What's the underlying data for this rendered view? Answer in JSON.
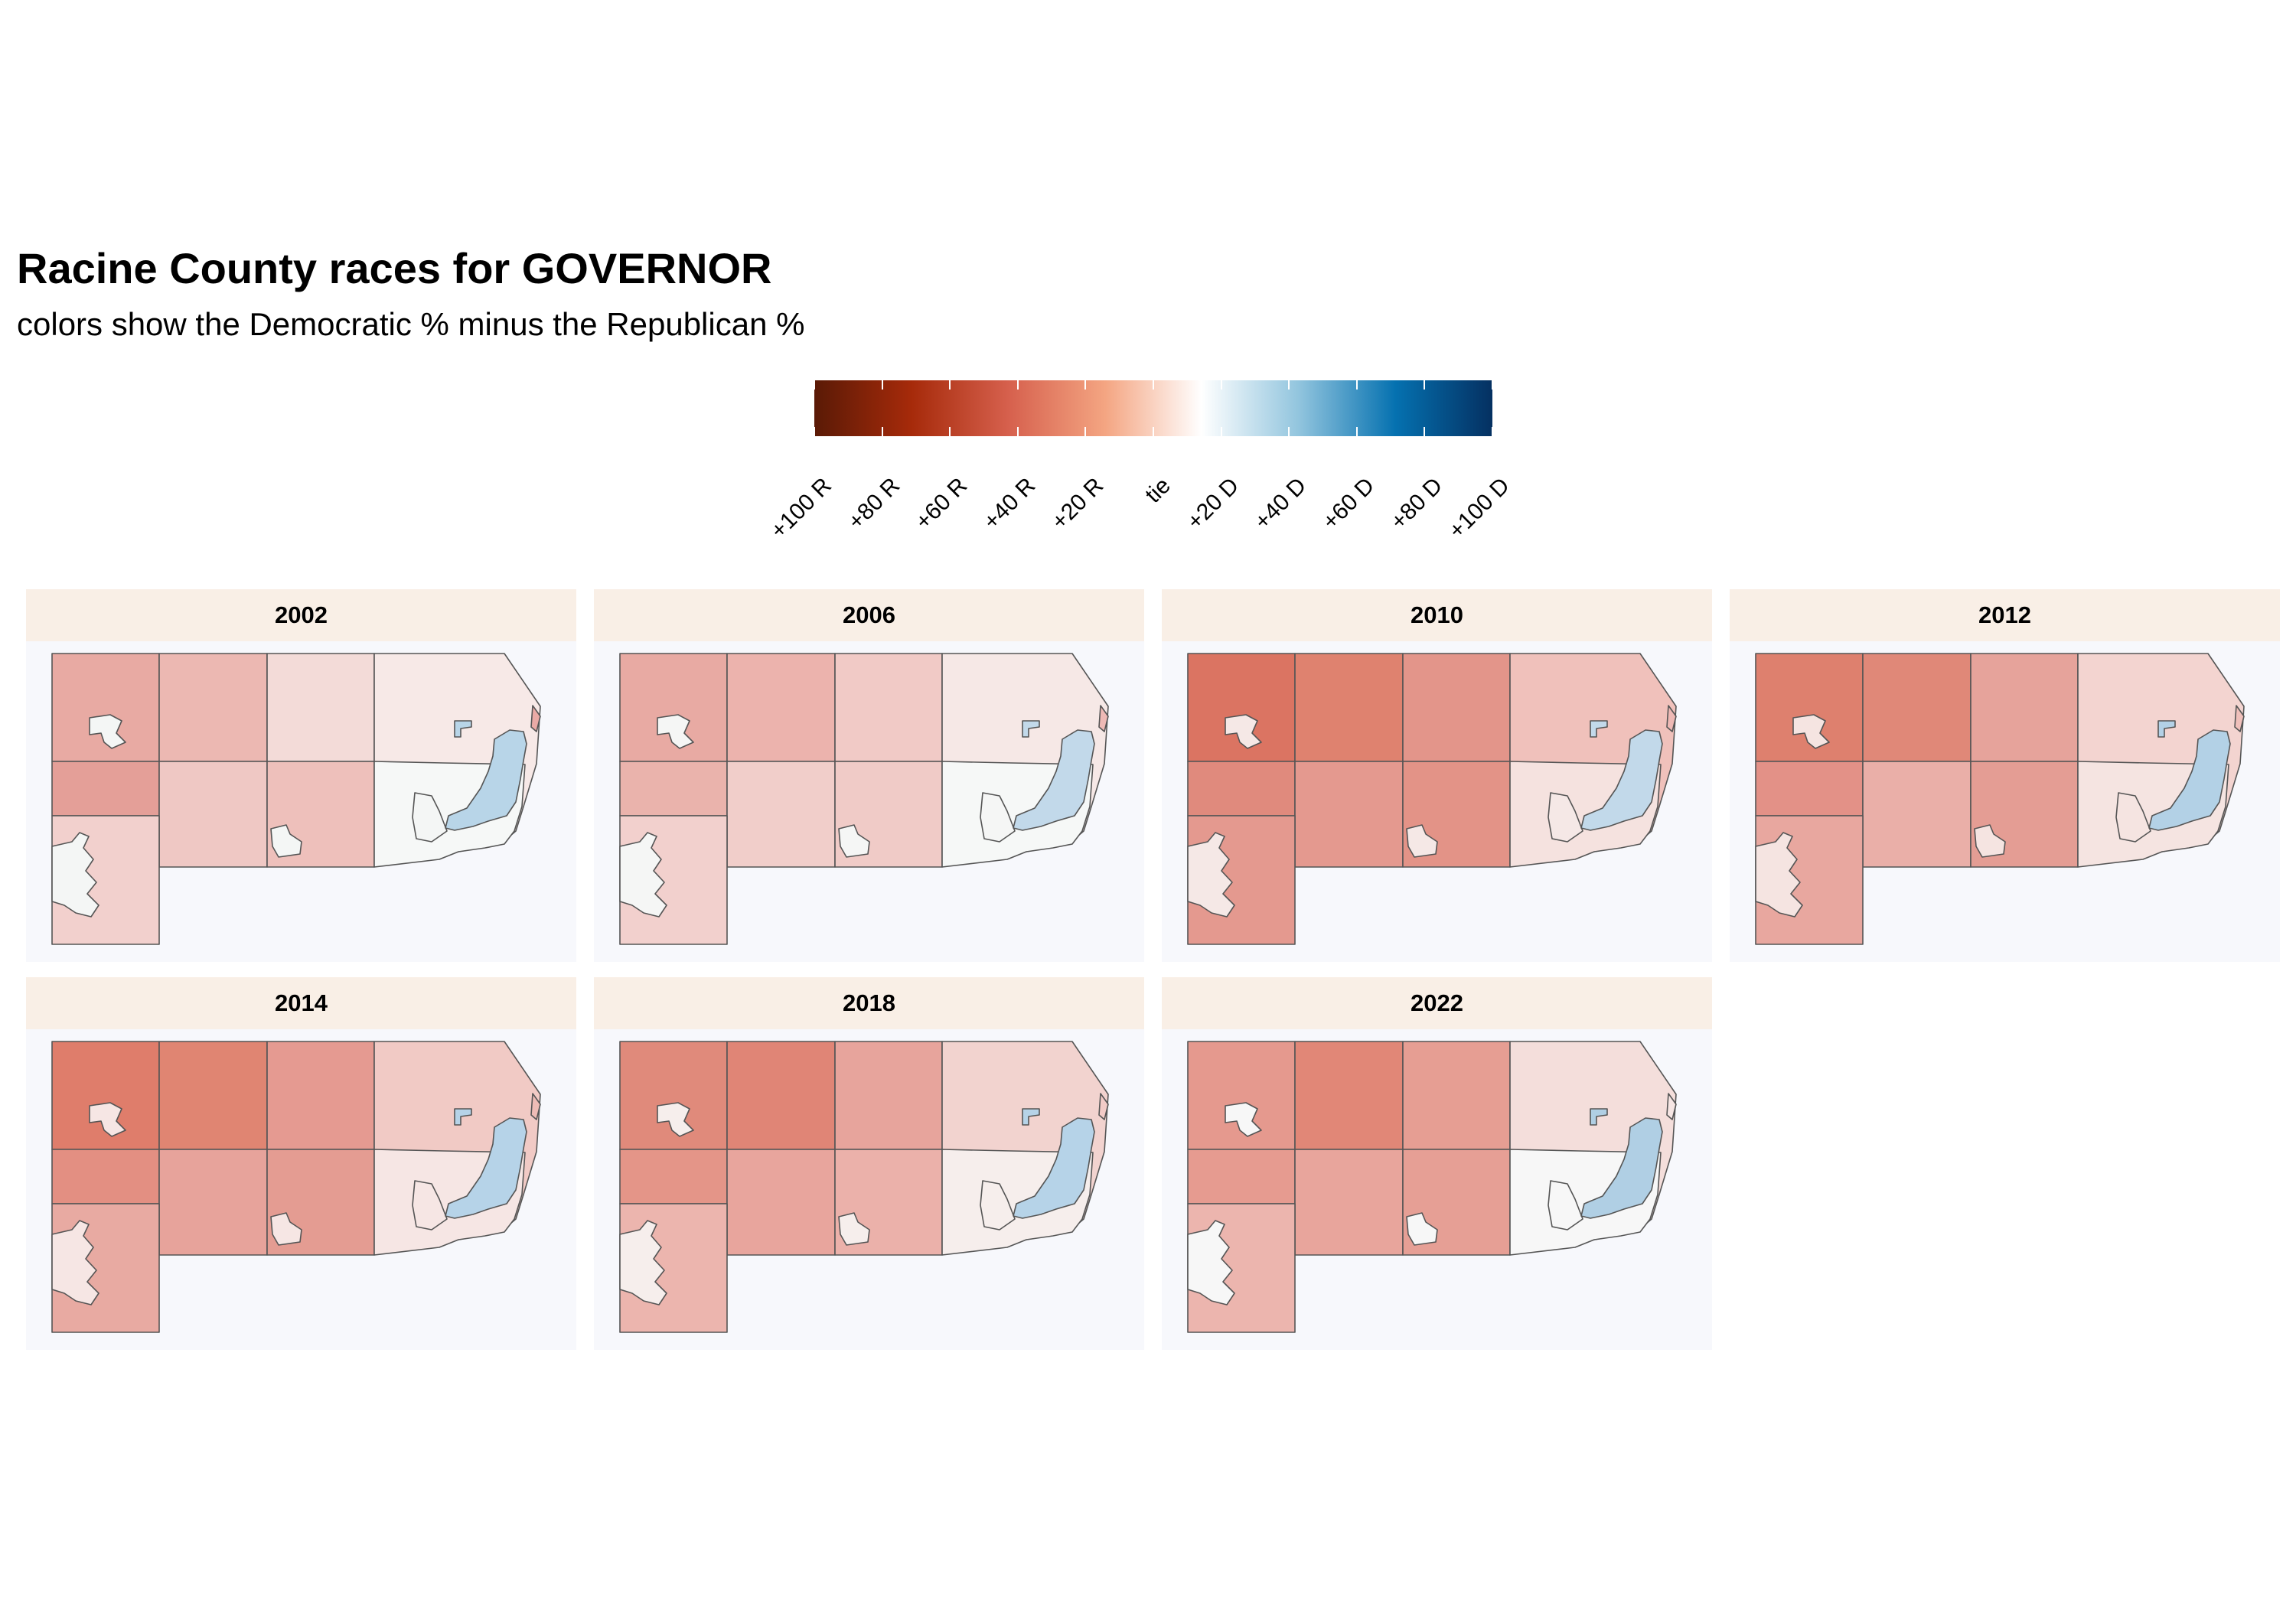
{
  "title": "Racine County races for GOVERNOR",
  "subtitle": "colors show the Democratic % minus the Republican %",
  "legend": {
    "labels": [
      "+100 R",
      "+80 R",
      "+60 R",
      "+40 R",
      "+20 R",
      "tie",
      "+20 D",
      "+40 D",
      "+60 D",
      "+80 D",
      "+100 D"
    ],
    "colors": [
      "#5a1a06",
      "#a62a0a",
      "#d6604d",
      "#f4a582",
      "#ffffff",
      "#92c5de",
      "#0571b0",
      "#053061"
    ]
  },
  "panels": [
    {
      "year": "2002",
      "fills": {
        "w1": "#e8aaa3",
        "w2": "#ecb8b2",
        "w3": "#f3dbd8",
        "w4": "#f7e9e7",
        "s1": "#e49f98",
        "s2": "#efc8c4",
        "s3": "#eec0bb",
        "s4": "#f6f8f7",
        "sw": "#f2d0cd",
        "ne": "#eaaaa6",
        "city": "#b8d5e8",
        "village": "#f4f6f5"
      }
    },
    {
      "year": "2006",
      "fills": {
        "w1": "#e8aaa3",
        "w2": "#ecb3ad",
        "w3": "#f1cac6",
        "w4": "#f6e8e6",
        "s1": "#eab3ac",
        "s2": "#f1ceca",
        "s3": "#f0cbc7",
        "s4": "#f6f8f7",
        "sw": "#f2d0cd",
        "ne": "#eeb9b5",
        "city": "#c2d9ea",
        "village": "#f5f6f5"
      }
    },
    {
      "year": "2010",
      "fills": {
        "w1": "#db7462",
        "w2": "#df826f",
        "w3": "#e3958a",
        "w4": "#f0c1bb",
        "s1": "#e08a7d",
        "s2": "#e4998f",
        "s3": "#e39387",
        "s4": "#f5e2df",
        "sw": "#e4998f",
        "ne": "#eeb9b5",
        "city": "#c2d9ea",
        "village": "#f5e8e6"
      }
    },
    {
      "year": "2012",
      "fills": {
        "w1": "#de806e",
        "w2": "#e08878",
        "w3": "#e6a39b",
        "w4": "#f3d4d0",
        "s1": "#e39187",
        "s2": "#eaafa8",
        "s3": "#e49d94",
        "s4": "#f5e4e1",
        "sw": "#e8a79f",
        "ne": "#f0c0bb",
        "city": "#b3d1e6",
        "village": "#f5e4e1"
      }
    },
    {
      "year": "2014",
      "fills": {
        "w1": "#df7d6b",
        "w2": "#e08572",
        "w3": "#e59a91",
        "w4": "#f1cac5",
        "s1": "#e38f82",
        "s2": "#e7a39b",
        "s3": "#e49c92",
        "s4": "#f6e6e4",
        "sw": "#e8aaa2",
        "ne": "#eebcb6",
        "city": "#b6d3e8",
        "village": "#f6e6e4"
      }
    },
    {
      "year": "2018",
      "fills": {
        "w1": "#e08a7b",
        "w2": "#e08576",
        "w3": "#e7a49c",
        "w4": "#f2d3cf",
        "s1": "#e49588",
        "s2": "#e8a59d",
        "s3": "#ebb1aa",
        "s4": "#f6eeec",
        "sw": "#ecb5ae",
        "ne": "#f2cbc7",
        "city": "#b6d3e8",
        "village": "#f6eeec"
      }
    },
    {
      "year": "2022",
      "fills": {
        "w1": "#e5998e",
        "w2": "#e18777",
        "w3": "#e69e93",
        "w4": "#f4dedb",
        "s1": "#e69b90",
        "s2": "#e8a59c",
        "s3": "#e69f95",
        "s4": "#f7f7f7",
        "sw": "#ecb5ae",
        "ne": "#f6e6e4",
        "city": "#b0cfe4",
        "village": "#f7f7f7"
      }
    }
  ]
}
